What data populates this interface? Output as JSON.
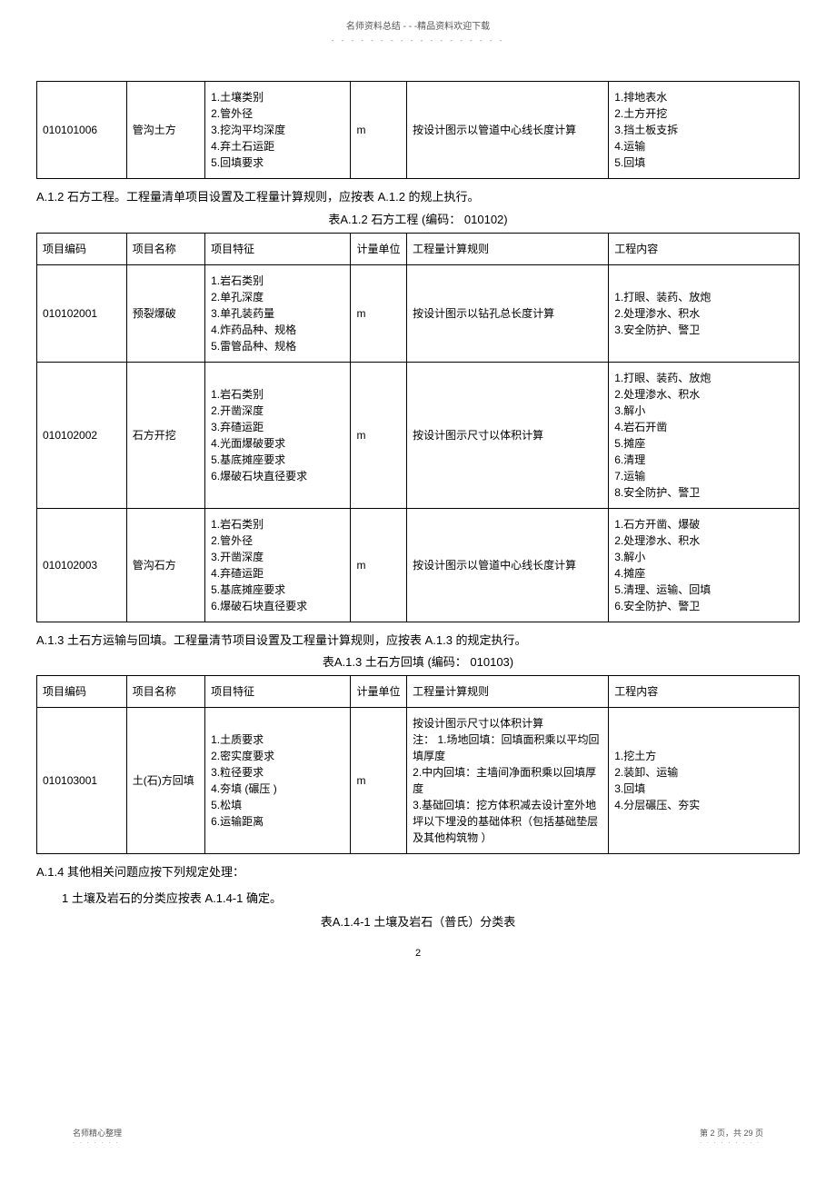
{
  "header": {
    "top_text": "名师资料总结 - - -精品资料欢迎下载",
    "dots": "- - - - - - - - - - - - - - - - - -"
  },
  "table1": {
    "rows": [
      {
        "code": "010101006",
        "name": "管沟土方",
        "feature": "1.土壤类别\n2.管外径\n3.挖沟平均深度\n4.弃土石运距\n5.回填要求",
        "unit": "m",
        "rule": "按设计图示以管道中心线长度计算",
        "content": "1.排地表水\n2.土方开挖\n3.挡土板支拆\n4.运输\n5.回填"
      }
    ]
  },
  "section_a12": {
    "title": "A.1.2  石方工程。工程量清单项目设置及工程量计算规则，应按表   A.1.2 的规上执行。",
    "caption": "表A.1.2  石方工程 (编码： 010102)"
  },
  "table2": {
    "headers": {
      "code": "项目编码",
      "name": "项目名称",
      "feature": "项目特征",
      "unit": "计量单位",
      "rule": "工程量计算规则",
      "content": "工程内容"
    },
    "rows": [
      {
        "code": "010102001",
        "name": "预裂爆破",
        "feature": "1.岩石类别\n2.单孔深度\n3.单孔装药量\n4.炸药品种、规格\n5.雷管品种、规格",
        "unit": "m",
        "rule": "按设计图示以钻孔总长度计算",
        "content": "1.打眼、装药、放炮\n2.处理渗水、积水\n3.安全防护、警卫"
      },
      {
        "code": "010102002",
        "name": "石方开挖",
        "feature": "1.岩石类别\n2.开凿深度\n3.弃碴运距\n4.光面爆破要求\n5.基底摊座要求\n6.爆破石块直径要求",
        "unit": "m",
        "rule": "按设计图示尺寸以体积计算",
        "content": "1.打眼、装药、放炮\n2.处理渗水、积水\n3.解小\n4.岩石开凿\n5.摊座\n6.清理\n7.运输\n8.安全防护、警卫"
      },
      {
        "code": "010102003",
        "name": "管沟石方",
        "feature": "1.岩石类别\n2.管外径\n3.开凿深度\n4.弃碴运距\n5.基底摊座要求\n6.爆破石块直径要求",
        "unit": "m",
        "rule": "按设计图示以管道中心线长度计算",
        "content": "1.石方开凿、爆破\n2.处理渗水、积水\n3.解小\n4.摊座\n5.清理、运输、回填\n6.安全防护、警卫"
      }
    ]
  },
  "section_a13": {
    "title": "A.1.3  土石方运输与回填。工程量清节项目设置及工程量计算规则，应按表   A.1.3 的规定执行。",
    "caption": "表A.1.3  土石方回填 (编码： 010103)"
  },
  "table3": {
    "headers": {
      "code": "项目编码",
      "name": "项目名称",
      "feature": "项目特征",
      "unit": "计量单位",
      "rule": "工程量计算规则",
      "content": "工程内容"
    },
    "rows": [
      {
        "code": "010103001",
        "name": "土(石)方回填",
        "feature": "1.土质要求\n2.密实度要求\n3.粒径要求\n4.夯填 (碾压 )\n5.松填\n6.运输距离",
        "unit": "m",
        "rule": "按设计图示尺寸以体积计算\n注： 1.场地回填：回填面积乘以平均回填厚度\n2.中内回填：主墙间净面积乘以回填厚度\n3.基础回填：挖方体积减去设计室外地坪以下埋没的基础体积（包括基础垫层及其他构筑物 ）",
        "content": "1.挖土方\n2.装卸、运输\n3.回填\n4.分层碾压、夯实"
      }
    ]
  },
  "section_a14": {
    "line1": "A.1.4  其他相关问题应按下列规定处理：",
    "line2": "1  土壤及岩石的分类应按表  A.1.4-1 确定。",
    "caption": "表A.1.4-1  土壤及岩石（普氏）分类表"
  },
  "page_number": "2",
  "footer": {
    "left": "名师精心整理",
    "left_dots": ". . . . . . .",
    "right": "第 2 页，共 29 页",
    "right_dots": ". . . . . . . . ."
  }
}
